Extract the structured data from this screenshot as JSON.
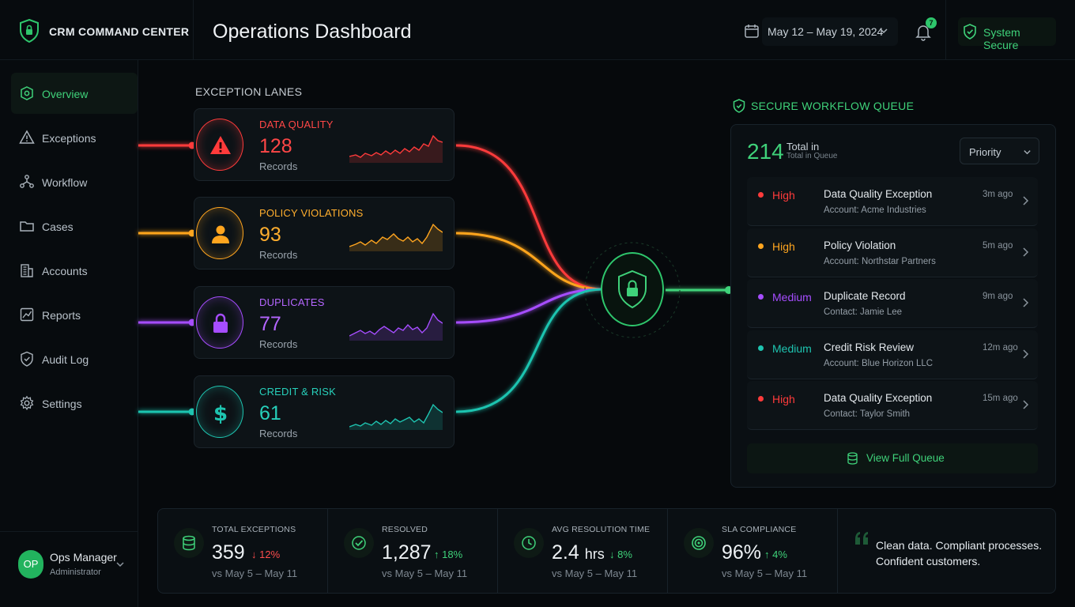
{
  "brand": {
    "name": "CRM COMMAND CENTER"
  },
  "page_title": "Operations Dashboard",
  "date_range": "May 12 – May 19, 2024",
  "notifications": {
    "count": "7"
  },
  "system_status": "System Secure",
  "sidebar": {
    "items": [
      {
        "label": "Overview",
        "icon": "overview-icon",
        "active": true
      },
      {
        "label": "Exceptions",
        "icon": "warning-icon"
      },
      {
        "label": "Workflow",
        "icon": "workflow-icon"
      },
      {
        "label": "Cases",
        "icon": "folder-icon"
      },
      {
        "label": "Accounts",
        "icon": "building-icon"
      },
      {
        "label": "Reports",
        "icon": "chart-icon"
      },
      {
        "label": "Audit Log",
        "icon": "shield-check-icon"
      },
      {
        "label": "Settings",
        "icon": "gear-icon"
      }
    ]
  },
  "user": {
    "initials": "OP",
    "name": "Ops Manager",
    "role": "Administrator"
  },
  "lanes": {
    "title": "EXCEPTION LANES",
    "items": [
      {
        "title": "DATA QUALITY",
        "count": "128",
        "sub": "Records",
        "color": "#ff3b3b",
        "icon": "warning-icon"
      },
      {
        "title": "POLICY VIOLATIONS",
        "count": "93",
        "sub": "Records",
        "color": "#ffa51f",
        "icon": "person-icon"
      },
      {
        "title": "DUPLICATES",
        "count": "77",
        "sub": "Records",
        "color": "#a64dff",
        "icon": "lock-icon"
      },
      {
        "title": "CREDIT & RISK",
        "count": "61",
        "sub": "Records",
        "color": "#1ec4b0",
        "icon": "dollar-icon"
      }
    ]
  },
  "queue": {
    "title": "SECURE WORKFLOW QUEUE",
    "total": "214",
    "total_label": "Total in",
    "total_sub": "Total in Queue",
    "filter": "Priority",
    "rows": [
      {
        "priority": "High",
        "color": "#ff3b3b",
        "title": "Data Quality Exception",
        "account": "Account: Acme Industries",
        "ago": "3m ago"
      },
      {
        "priority": "High",
        "color": "#ffa51f",
        "title": "Policy Violation",
        "account": "Account: Northstar Partners",
        "ago": "5m ago"
      },
      {
        "priority": "Medium",
        "color": "#a64dff",
        "title": "Duplicate Record",
        "account": "Contact: Jamie Lee",
        "ago": "9m ago"
      },
      {
        "priority": "Medium",
        "color": "#1ec4b0",
        "title": "Credit Risk Review",
        "account": "Account: Blue Horizon LLC",
        "ago": "12m ago"
      },
      {
        "priority": "High",
        "color": "#ff3b3b",
        "title": "Data Quality Exception",
        "account": "Contact: Taylor Smith",
        "ago": "15m ago"
      }
    ],
    "view_full": "View Full Queue"
  },
  "stats": [
    {
      "label": "TOTAL EXCEPTIONS",
      "value": "359",
      "delta": "12%",
      "direction": "down",
      "delta_color": "#ff4d4d",
      "compare": "vs May 5 – May 11",
      "icon": "database-icon"
    },
    {
      "label": "RESOLVED",
      "value": "1,287",
      "delta": "18%",
      "direction": "up",
      "delta_color": "#3fd27a",
      "compare": "vs May 5 – May 11",
      "icon": "check-circle-icon"
    },
    {
      "label": "AVG RESOLUTION TIME",
      "value": "2.4",
      "unit": "hrs",
      "delta": "8%",
      "direction": "down",
      "delta_color": "#3fd27a",
      "compare": "vs May 5 – May 11",
      "icon": "clock-icon"
    },
    {
      "label": "SLA COMPLIANCE",
      "value": "96%",
      "delta": "4%",
      "direction": "up",
      "delta_color": "#3fd27a",
      "compare": "vs May 5 – May 11",
      "icon": "target-icon"
    }
  ],
  "tagline": "Clean data. Compliant processes. Confident customers.",
  "accent": "#3fd27a"
}
